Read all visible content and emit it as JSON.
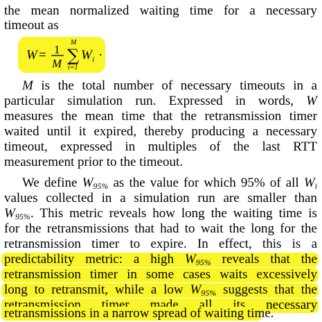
{
  "paragraph1": {
    "line1": [
      "the",
      "mean",
      "normalized",
      "waiting",
      "time",
      "for",
      "a",
      "necessary"
    ],
    "line2": "timeout as"
  },
  "formula": {
    "lhs": "W",
    "equals": "=",
    "frac_num": "1",
    "frac_den": "M",
    "sum_upper": "M",
    "sum_symbol": "∑",
    "sum_lower": "i=1",
    "term": "W",
    "term_sub": "i",
    "trailing": "·"
  },
  "paragraph2": {
    "lines": [
      [
        "M",
        "is",
        "the",
        "total",
        "number",
        "of",
        "necessary",
        "timeouts",
        "in",
        "a"
      ],
      [
        "particular",
        "simulation",
        "run.",
        "Expressed",
        "in",
        "words,",
        "W"
      ],
      [
        "measures",
        "the",
        "mean",
        "time",
        "that",
        "the",
        "retransmission",
        "timer"
      ],
      [
        "waited",
        "until",
        "it",
        "expired,",
        "thereby",
        "producing",
        "a",
        "necessary"
      ],
      [
        "timeout,",
        "expressed",
        "in",
        "multiples",
        "of",
        "the",
        "last",
        "RTT"
      ],
      [
        "measurement prior to the timeout."
      ]
    ]
  },
  "paragraph3": {
    "lines": [
      [
        "We",
        "define",
        "W95%",
        "as",
        "the",
        "value",
        "for",
        "which",
        "95%",
        "of",
        "all",
        "Wi"
      ],
      [
        "values",
        "collected",
        "in",
        "a",
        "simulation",
        "run",
        "are",
        "smaller",
        "than"
      ],
      [
        "W95%.",
        "This",
        "metric",
        "reveals",
        "how",
        "long",
        "the",
        "waiting",
        "time",
        "is"
      ],
      [
        "for",
        "the",
        "retransmissions",
        "that",
        "had",
        "to",
        "wait",
        "the",
        "long",
        "for",
        "the"
      ],
      [
        "retransmission",
        "timer",
        "to",
        "expire.",
        "In",
        "effect,",
        "this",
        "is",
        "a"
      ],
      [
        "predictability",
        "metric:",
        "a",
        "high",
        "W95%",
        "reveals",
        "that",
        "the"
      ],
      [
        "retransmission",
        "timer",
        "in",
        "some",
        "cases",
        "waits",
        "excessively"
      ],
      [
        "long",
        "to",
        "retransmit,",
        "while",
        "a",
        "low",
        "W95%",
        "suggests",
        "that",
        "the"
      ],
      [
        "retransmission",
        "timer",
        "made",
        "all",
        "its",
        "necessary"
      ],
      [
        "retransmissions in a narrow spread of waiting time."
      ]
    ],
    "highlighted_from_line": 6
  }
}
